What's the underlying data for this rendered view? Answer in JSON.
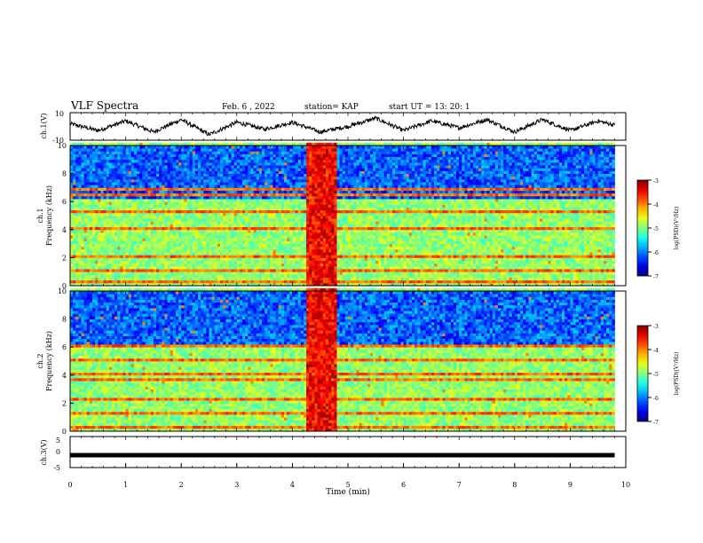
{
  "header": {
    "title": "VLF Spectra",
    "date": "Feb. 6 , 2022",
    "station": "station= KAP",
    "start_time": "start UT = 13: 20: 1"
  },
  "chart_data": [
    {
      "panel": "ch1-waveform",
      "type": "line",
      "ylabel": "ch.1(V)",
      "ylim": [
        -10,
        10
      ],
      "xlim": [
        0,
        10
      ],
      "yticks": [
        "10",
        "-10"
      ],
      "x": [
        0,
        0.5,
        1,
        1.5,
        2,
        2.5,
        3,
        3.5,
        4,
        4.5,
        5,
        5.5,
        6,
        6.5,
        7,
        7.5,
        8,
        8.5,
        9,
        9.5,
        9.8
      ],
      "y": [
        2,
        -3,
        4,
        -4,
        5,
        -6,
        3,
        -2,
        3,
        -4,
        0,
        6,
        -3,
        4,
        -1,
        5,
        -4,
        5,
        -3,
        4,
        1
      ],
      "line_color": "#000000"
    },
    {
      "panel": "ch1-spectrogram",
      "type": "heatmap",
      "ylabel": "ch.1\nFrequency (kHz)",
      "ylabel_main": "ch.1",
      "ylabel_sub": "Frequency (kHz)",
      "ylim": [
        0,
        10
      ],
      "xlim": [
        0,
        10
      ],
      "yticks": [
        "0",
        "2",
        "4",
        "6",
        "8",
        "10"
      ],
      "colorbar": {
        "label": "log(PSD)(V²/Hz)",
        "ticks": [
          "-3",
          "-4",
          "-5",
          "-6",
          "-7"
        ],
        "range": [
          -7,
          -3
        ]
      },
      "burst_interval_min": [
        4.2,
        4.75
      ],
      "quiet_band_khz": [
        6.2,
        9.9
      ],
      "note_lines_khz": [
        0.3,
        1.0,
        2.0,
        2.3,
        4.0,
        5.3,
        6.5,
        6.8
      ]
    },
    {
      "panel": "ch2-spectrogram",
      "type": "heatmap",
      "ylabel": "ch.2\nFrequency (kHz)",
      "ylabel_main": "ch.2",
      "ylabel_sub": "Frequency (kHz)",
      "ylim": [
        0,
        10
      ],
      "xlim": [
        0,
        10
      ],
      "yticks": [
        "0",
        "2",
        "4",
        "6",
        "8",
        "10"
      ],
      "colorbar": {
        "label": "log(PSD)(V²/Hz)",
        "ticks": [
          "-3",
          "-4",
          "-5",
          "-6",
          "-7"
        ],
        "range": [
          -7,
          -3
        ]
      },
      "burst_interval_min": [
        4.2,
        4.75
      ],
      "quiet_band_khz": [
        6.0,
        9.9
      ],
      "note_lines_khz": [
        0.3,
        1.1,
        2.1,
        3.6,
        4.1,
        5.0,
        6.0
      ]
    },
    {
      "panel": "ch3-waveform",
      "type": "line",
      "ylabel": "ch.3(V)",
      "ylim": [
        -5,
        5
      ],
      "xlim": [
        0,
        10
      ],
      "yticks": [
        "5",
        "0",
        "-5"
      ],
      "x": [
        0,
        9.8
      ],
      "y": [
        -1,
        -1
      ],
      "line_color": "#000000",
      "xlabel": "Time (min)",
      "xticks": [
        "0",
        "1",
        "2",
        "3",
        "4",
        "5",
        "6",
        "7",
        "8",
        "9",
        "10"
      ]
    }
  ]
}
